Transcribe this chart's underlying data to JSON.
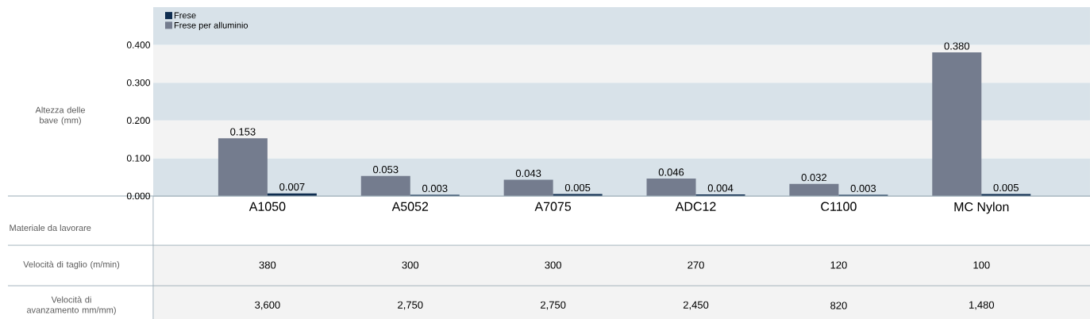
{
  "chart_data": {
    "type": "bar",
    "ylabel": "Altezza delle bave (mm)",
    "bands": [
      {
        "axis": "y",
        "from": 0,
        "to": 0.1,
        "color": "#d8e2e9"
      },
      {
        "axis": "y",
        "from": 0.1,
        "to": 0.2,
        "color": "#f3f3f3"
      },
      {
        "axis": "y",
        "from": 0.2,
        "to": 0.3,
        "color": "#d8e2e9"
      },
      {
        "axis": "y",
        "from": 0.3,
        "to": 0.4,
        "color": "#f3f3f3"
      },
      {
        "axis": "y",
        "from": 0.4,
        "to": 0.5,
        "color": "#d8e2e9"
      }
    ],
    "categories": [
      "A1050",
      "A5052",
      "A7075",
      "ADC12",
      "C1100",
      "MC Nylon"
    ],
    "series": [
      {
        "name": "Frese per alluminio",
        "color": "#747c8e",
        "values": [
          0.153,
          0.053,
          0.043,
          0.046,
          0.032,
          0.38
        ],
        "value_labels": [
          "0.153",
          "0.053",
          "0.043",
          "0.046",
          "0.032",
          "0.380"
        ]
      },
      {
        "name": "Frese",
        "color": "#0e2c4f",
        "values": [
          0.007,
          0.003,
          0.005,
          0.004,
          0.003,
          0.005
        ],
        "value_labels": [
          "0.007",
          "0.003",
          "0.005",
          "0.004",
          "0.003",
          "0.005"
        ]
      }
    ],
    "ylim": [
      0,
      0.5
    ],
    "yticks": [
      {
        "value": 0,
        "label": "0.000"
      },
      {
        "value": 0.1,
        "label": "0.100"
      },
      {
        "value": 0.2,
        "label": "0.200"
      },
      {
        "value": 0.3,
        "label": "0.300"
      },
      {
        "value": 0.4,
        "label": "0.400"
      }
    ],
    "legend": "top left",
    "annotations": [
      "Materiale da lavorare",
      "Velocità di taglio (m/min)",
      "380",
      "300",
      "300",
      "270",
      "120",
      "100",
      "Velocità di avanzamento mm/mm)",
      "3,600",
      "2,750",
      "2,750",
      "2,450",
      "820",
      "1,480"
    ]
  }
}
